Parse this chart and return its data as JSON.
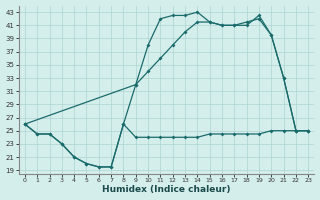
{
  "xlabel": "Humidex (Indice chaleur)",
  "background_color": "#d4eeec",
  "grid_color": "#aed4d1",
  "line_color": "#1a6b6b",
  "xlim": [
    -0.5,
    23.5
  ],
  "ylim": [
    18.5,
    44
  ],
  "yticks": [
    19,
    21,
    23,
    25,
    27,
    29,
    31,
    33,
    35,
    37,
    39,
    41,
    43
  ],
  "xticks": [
    0,
    1,
    2,
    3,
    4,
    5,
    6,
    7,
    8,
    9,
    10,
    11,
    12,
    13,
    14,
    15,
    16,
    17,
    18,
    19,
    20,
    21,
    22,
    23
  ],
  "curve_upper_x": [
    0,
    1,
    2,
    3,
    4,
    5,
    6,
    7,
    8,
    9,
    10,
    11,
    12,
    13,
    14,
    15,
    16,
    17,
    18,
    19,
    20,
    21,
    22,
    23
  ],
  "curve_upper_y": [
    26,
    24.5,
    24.5,
    23,
    21,
    20,
    19.5,
    19.5,
    26,
    32,
    38,
    42,
    42.5,
    42.5,
    43,
    41.5,
    41,
    41,
    41,
    42.5,
    39.5,
    33,
    25,
    25
  ],
  "curve_diag_x": [
    0,
    9,
    10,
    11,
    12,
    13,
    14,
    15,
    16,
    17,
    18,
    19,
    20,
    21,
    22,
    23
  ],
  "curve_diag_y": [
    26,
    32,
    34,
    36,
    38,
    40,
    41.5,
    41.5,
    41,
    41,
    41.5,
    42,
    39.5,
    33,
    25,
    25
  ],
  "curve_lower_x": [
    0,
    1,
    2,
    3,
    4,
    5,
    6,
    7,
    8,
    9,
    10,
    11,
    12,
    13,
    14,
    15,
    16,
    17,
    18,
    19,
    20,
    21,
    22,
    23
  ],
  "curve_lower_y": [
    26,
    24.5,
    24.5,
    23,
    21,
    20,
    19.5,
    19.5,
    26,
    24,
    24,
    24,
    24,
    24,
    24,
    24.5,
    24.5,
    24.5,
    24.5,
    24.5,
    25,
    25,
    25,
    25
  ]
}
